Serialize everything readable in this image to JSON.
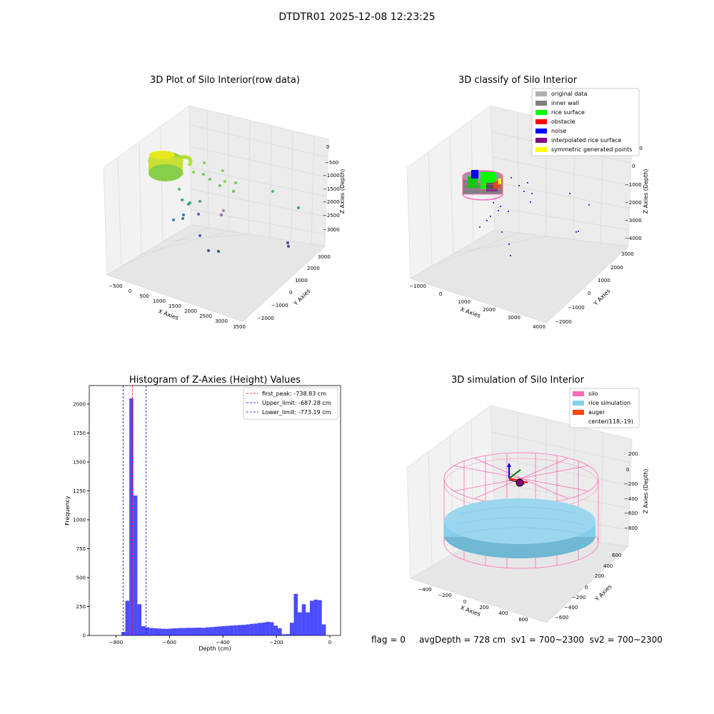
{
  "suptitle": "DTDTR01 2025-12-08 12:23:25",
  "status": {
    "flag": "flag = 0",
    "avg_depth": "avgDepth = 728 cm",
    "sv1": "sv1 = 700~2300",
    "sv2": "sv2 = 700~2300"
  },
  "colors": {
    "histogram": "#0000ff",
    "peak_line": "#ff0000",
    "limit_line": "#0000ff",
    "silo": "#ff69b4",
    "rice_simulation": "#87ceeb",
    "auger": "#ff4500",
    "original": "#b0b0b0",
    "inner_wall": "#808080",
    "rice_surface": "#00ff00",
    "obstacle": "#ff0000",
    "noise": "#0000ff",
    "interpolated": "#800080",
    "symmetric": "#ffff00"
  },
  "chart_data": [
    {
      "type": "scatter",
      "projection": "3d",
      "title": "3D Plot of Silo Interior(row data)",
      "xlabel": "X Axies",
      "ylabel": "Y Axies",
      "zlabel": "Z Axies (Depth)",
      "x_ticks": [
        "−500",
        "0",
        "500",
        "1000",
        "1500",
        "2000",
        "2500",
        "3000",
        "3500"
      ],
      "y_ticks": [
        "−2000",
        "−1000",
        "0",
        "1000",
        "2000",
        "3000"
      ],
      "z_ticks": [
        "0",
        "−500",
        "−1000",
        "−1500",
        "−2000",
        "−2500",
        "−3000"
      ],
      "grid": true
    },
    {
      "type": "scatter",
      "projection": "3d",
      "title": "3D classify of Silo Interior",
      "xlabel": "X Axies",
      "ylabel": "Y Axies",
      "zlabel": "Z Axies (Depth)",
      "x_ticks": [
        "−1000",
        "0",
        "1000",
        "2000",
        "3000",
        "4000"
      ],
      "y_ticks": [
        "−2000",
        "−1000",
        "0",
        "1000",
        "2000",
        "3000"
      ],
      "z_ticks": [
        "1000",
        "0",
        "−1000",
        "−2000",
        "−3000",
        "−4000"
      ],
      "legend": [
        "original data",
        "inner wall",
        "rice surface",
        "obstacle",
        "noise",
        "interpolated rice surface",
        "symmetric generated points"
      ],
      "legend_position": "top-right",
      "grid": true
    },
    {
      "type": "bar",
      "title": "Histogram of Z-Axies (Height) Values",
      "xlabel": "Depth (cm)",
      "ylabel": "Frequency",
      "xlim": [
        -900,
        40
      ],
      "ylim": [
        0,
        2160
      ],
      "x_ticks": [
        -800,
        -600,
        -400,
        -200,
        0
      ],
      "x_tick_labels": [
        "−800",
        "−600",
        "−400",
        "−200",
        "0"
      ],
      "y_ticks": [
        0,
        250,
        500,
        750,
        1000,
        1250,
        1500,
        1750,
        2000
      ],
      "bin_width": 15,
      "bins": [
        [
          -780,
          30
        ],
        [
          -765,
          300
        ],
        [
          -750,
          2050
        ],
        [
          -735,
          1210
        ],
        [
          -720,
          270
        ],
        [
          -705,
          80
        ],
        [
          -690,
          70
        ],
        [
          -675,
          65
        ],
        [
          -660,
          62
        ],
        [
          -645,
          60
        ],
        [
          -630,
          58
        ],
        [
          -615,
          57
        ],
        [
          -600,
          60
        ],
        [
          -585,
          62
        ],
        [
          -570,
          64
        ],
        [
          -555,
          65
        ],
        [
          -540,
          66
        ],
        [
          -525,
          66
        ],
        [
          -510,
          67
        ],
        [
          -495,
          68
        ],
        [
          -480,
          66
        ],
        [
          -465,
          70
        ],
        [
          -450,
          72
        ],
        [
          -435,
          75
        ],
        [
          -420,
          78
        ],
        [
          -405,
          80
        ],
        [
          -390,
          83
        ],
        [
          -375,
          86
        ],
        [
          -360,
          88
        ],
        [
          -345,
          90
        ],
        [
          -330,
          92
        ],
        [
          -315,
          95
        ],
        [
          -300,
          100
        ],
        [
          -285,
          103
        ],
        [
          -270,
          108
        ],
        [
          -255,
          112
        ],
        [
          -240,
          118
        ],
        [
          -225,
          115
        ],
        [
          -210,
          85
        ],
        [
          -195,
          62
        ],
        [
          -180,
          10
        ],
        [
          -165,
          12
        ],
        [
          -150,
          110
        ],
        [
          -135,
          360
        ],
        [
          -120,
          200
        ],
        [
          -105,
          270
        ],
        [
          -90,
          200
        ],
        [
          -75,
          300
        ],
        [
          -60,
          310
        ],
        [
          -45,
          305
        ],
        [
          -30,
          95
        ]
      ],
      "vlines": [
        {
          "x": -738.83,
          "label": "first_peak: -738.83 cm",
          "style": "peak"
        },
        {
          "x": -687.28,
          "label": "Upper_limit: -687.28 cm",
          "style": "limit"
        },
        {
          "x": -773.19,
          "label": "Lower_limit: -773.19 cm",
          "style": "limit"
        }
      ],
      "legend_position": "top-right"
    },
    {
      "type": "surface",
      "projection": "3d",
      "title": "3D simulation of Silo Interior",
      "xlabel": "X Axies",
      "ylabel": "Y Axies",
      "zlabel": "Z Axies (Depth)",
      "x_ticks": [
        "−400",
        "−200",
        "0",
        "200",
        "400",
        "600"
      ],
      "y_ticks": [
        "−600",
        "−400",
        "−200",
        "0",
        "200",
        "400",
        "600"
      ],
      "z_ticks": [
        "200",
        "0",
        "−200",
        "−400",
        "−600",
        "−800"
      ],
      "legend": [
        "silo",
        "rice simulation",
        "auger",
        "center(118,-19)"
      ],
      "legend_position": "top-right",
      "grid": true
    }
  ]
}
